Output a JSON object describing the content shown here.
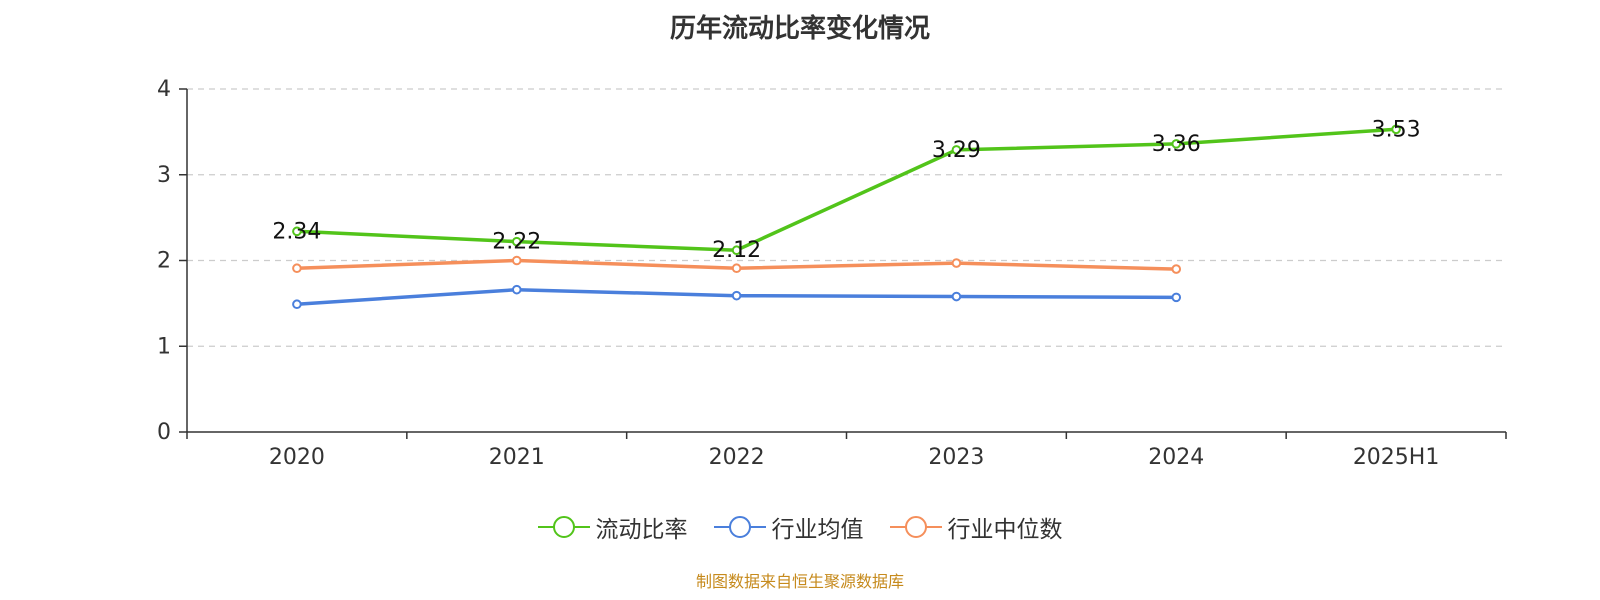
{
  "chart_data": {
    "type": "line",
    "title": "历年流动比率变化情况",
    "categories": [
      "2020",
      "2021",
      "2022",
      "2023",
      "2024",
      "2025H1"
    ],
    "ylim": [
      0,
      4
    ],
    "yticks": [
      0,
      1,
      2,
      3,
      4
    ],
    "grid": true,
    "legend_position": "bottom",
    "series": [
      {
        "name": "流动比率",
        "color": "#52c41a",
        "values": [
          2.34,
          2.22,
          2.12,
          3.29,
          3.36,
          3.53
        ],
        "labels": [
          "2.34",
          "2.22",
          "2.12",
          "3.29",
          "3.36",
          "3.53"
        ]
      },
      {
        "name": "行业均值",
        "color": "#4a7fdc",
        "values": [
          1.49,
          1.66,
          1.59,
          1.58,
          1.57,
          null
        ]
      },
      {
        "name": "行业中位数",
        "color": "#f58f5b",
        "values": [
          1.91,
          2.0,
          1.91,
          1.97,
          1.9,
          null
        ]
      }
    ]
  },
  "source_note": "制图数据来自恒生聚源数据库"
}
